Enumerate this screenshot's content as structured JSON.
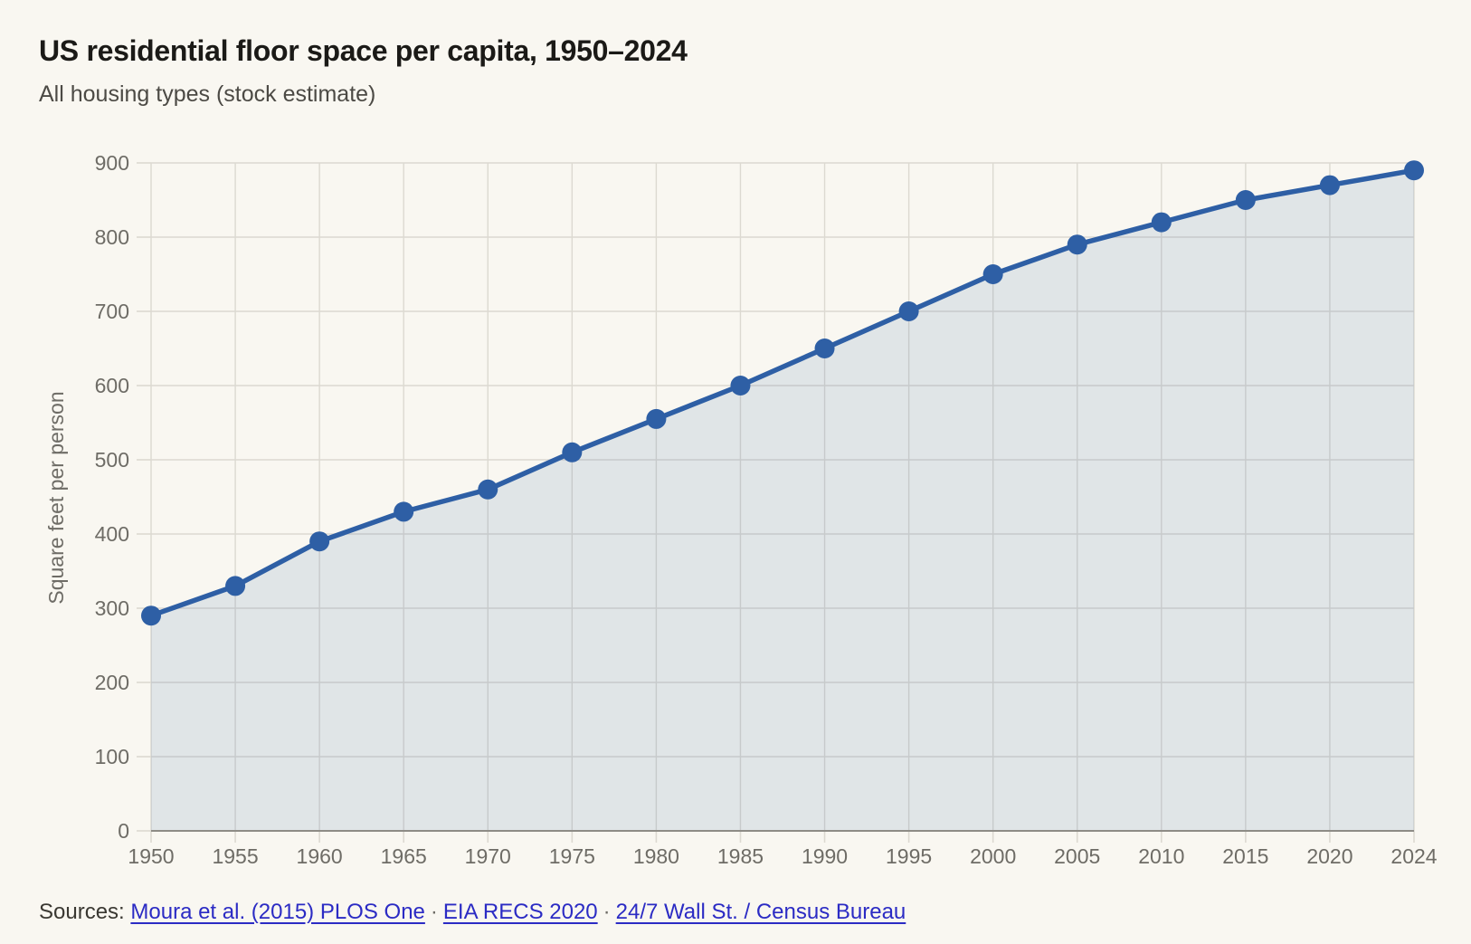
{
  "header": {
    "title": "US residential floor space per capita, 1950–2024",
    "subtitle": "All housing types (stock estimate)"
  },
  "chart_data": {
    "type": "area",
    "title": "US residential floor space per capita, 1950–2024",
    "subtitle": "All housing types (stock estimate)",
    "categories": [
      "1950",
      "1955",
      "1960",
      "1965",
      "1970",
      "1975",
      "1980",
      "1985",
      "1990",
      "1995",
      "2000",
      "2005",
      "2010",
      "2015",
      "2020",
      "2024"
    ],
    "values": [
      290,
      330,
      390,
      430,
      460,
      510,
      555,
      600,
      650,
      700,
      750,
      790,
      820,
      850,
      870,
      890
    ],
    "xlabel": "",
    "ylabel": "Square feet per person",
    "ylim": [
      0,
      900
    ],
    "ytick_step": 100,
    "grid": true,
    "legend": "none",
    "marker": "circle"
  },
  "colors": {
    "background": "#f9f7f1",
    "accent": "#2e5fa5",
    "area_fill": "rgba(46,95,165,0.12)",
    "gridline": "#dcd9d1",
    "axis_line": "#8e8c86",
    "tick_label": "#6e6c66",
    "link": "#2b2bc4"
  },
  "sources": {
    "label": "Sources:",
    "separator": "·",
    "links": [
      {
        "label": "Moura et al. (2015) PLOS One"
      },
      {
        "label": "EIA RECS 2020"
      },
      {
        "label": "24/7 Wall St. / Census Bureau"
      }
    ]
  }
}
